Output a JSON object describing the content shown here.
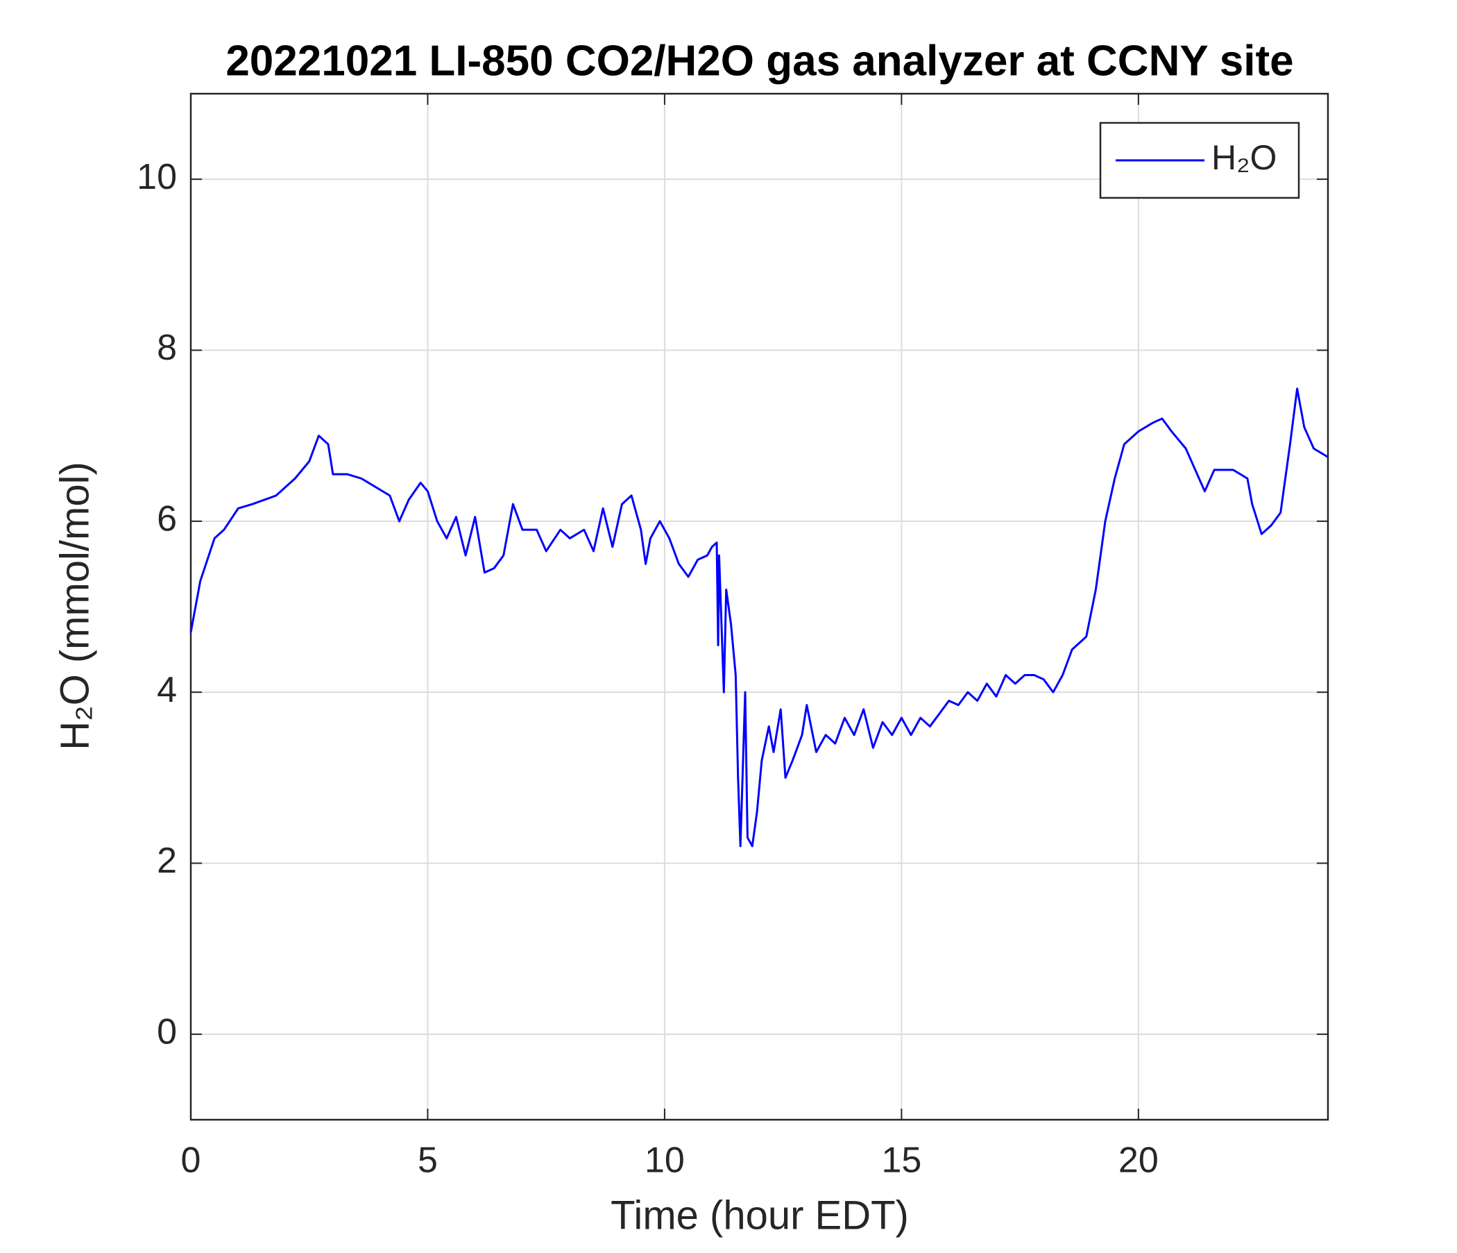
{
  "chart_data": {
    "type": "line",
    "title": "20221021 LI-850 CO2/H2O gas analyzer at CCNY site",
    "x_label": "Time (hour EDT)",
    "y_label": "H₂O (mmol/mol)",
    "x": [
      0,
      0.2,
      0.5,
      0.7,
      1.0,
      1.3,
      1.8,
      2.2,
      2.5,
      2.7,
      2.9,
      3.0,
      3.3,
      3.6,
      3.9,
      4.2,
      4.4,
      4.6,
      4.85,
      5.0,
      5.2,
      5.4,
      5.6,
      5.8,
      6.0,
      6.2,
      6.4,
      6.6,
      6.8,
      7.0,
      7.3,
      7.5,
      7.8,
      8.0,
      8.3,
      8.5,
      8.7,
      8.9,
      9.1,
      9.3,
      9.5,
      9.6,
      9.7,
      9.9,
      10.1,
      10.3,
      10.5,
      10.7,
      10.9,
      11.0,
      11.1,
      11.13,
      11.15,
      11.25,
      11.3,
      11.4,
      11.5,
      11.55,
      11.6,
      11.7,
      11.75,
      11.85,
      11.95,
      12.05,
      12.2,
      12.3,
      12.45,
      12.55,
      12.7,
      12.9,
      13.0,
      13.2,
      13.4,
      13.6,
      13.8,
      14.0,
      14.2,
      14.4,
      14.6,
      14.8,
      15.0,
      15.2,
      15.4,
      15.6,
      15.8,
      16.0,
      16.2,
      16.4,
      16.6,
      16.8,
      17.0,
      17.2,
      17.4,
      17.6,
      17.8,
      18.0,
      18.2,
      18.4,
      18.6,
      18.9,
      19.1,
      19.3,
      19.5,
      19.7,
      20.0,
      20.3,
      20.5,
      20.7,
      21.0,
      21.2,
      21.4,
      21.6,
      22.0,
      22.3,
      22.4,
      22.6,
      22.8,
      23.0,
      23.2,
      23.35,
      23.5,
      23.7,
      24.0
    ],
    "series": [
      {
        "name": "H₂O",
        "color": "#0000ff",
        "values": [
          4.7,
          5.3,
          5.8,
          5.9,
          6.15,
          6.2,
          6.3,
          6.5,
          6.7,
          7.0,
          6.9,
          6.55,
          6.55,
          6.5,
          6.4,
          6.3,
          6.0,
          6.25,
          6.45,
          6.35,
          6.0,
          5.8,
          6.05,
          5.6,
          6.05,
          5.4,
          5.45,
          5.6,
          6.2,
          5.9,
          5.9,
          5.65,
          5.9,
          5.8,
          5.9,
          5.65,
          6.15,
          5.7,
          6.2,
          6.3,
          5.9,
          5.5,
          5.8,
          6.0,
          5.8,
          5.5,
          5.35,
          5.55,
          5.6,
          5.7,
          5.75,
          4.55,
          5.6,
          4.0,
          5.2,
          4.8,
          4.2,
          3.0,
          2.2,
          4.0,
          2.3,
          2.2,
          2.6,
          3.2,
          3.6,
          3.3,
          3.8,
          3.0,
          3.2,
          3.5,
          3.85,
          3.3,
          3.5,
          3.4,
          3.7,
          3.5,
          3.8,
          3.35,
          3.65,
          3.5,
          3.7,
          3.5,
          3.7,
          3.6,
          3.75,
          3.9,
          3.85,
          4.0,
          3.9,
          4.1,
          3.95,
          4.2,
          4.1,
          4.2,
          4.2,
          4.15,
          4.0,
          4.2,
          4.5,
          4.65,
          5.2,
          6.0,
          6.5,
          6.9,
          7.05,
          7.15,
          7.2,
          7.05,
          6.85,
          6.6,
          6.35,
          6.6,
          6.6,
          6.5,
          6.2,
          5.85,
          5.95,
          6.1,
          6.9,
          7.55,
          7.1,
          6.85,
          6.75
        ]
      }
    ],
    "xlim": [
      0,
      24
    ],
    "xticks": [
      0,
      5,
      10,
      15,
      20
    ],
    "ylim": [
      -1,
      11
    ],
    "yticks": [
      0,
      2,
      4,
      6,
      8,
      10
    ],
    "grid": true,
    "legend": "upper right"
  }
}
